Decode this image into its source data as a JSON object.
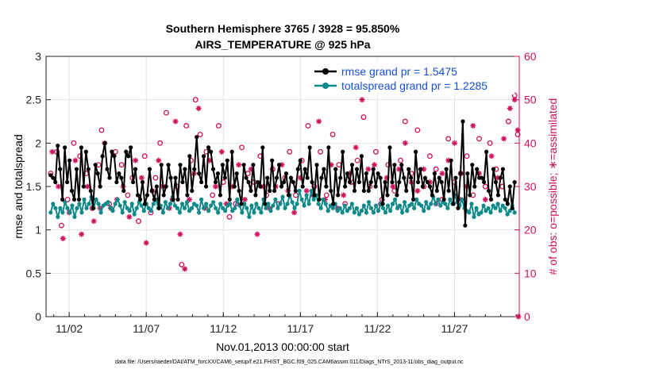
{
  "chart_data": {
    "type": "line",
    "title_line1": "Southern Hemisphere 3765 / 3928 = 95.850%",
    "title_line2": "AIRS_TEMPERATURE @ 925 hPa",
    "xlabel": "Nov.01,2013 00:00:00 start",
    "ylabel_left": "rmse and totalspread",
    "ylabel_right": "# of obs: o=possible; ∗=assimilated",
    "footnote": "data file: /Users/raeder/DAI/ATM_forcXX/CAM6_setup/f.e21.FHIST_BGC.f09_025.CAM6assim.011/Diags_NTrS_2013-11/obs_diag_output.nc",
    "x_range": [
      0.5,
      31.2
    ],
    "y_left_range": [
      0,
      3
    ],
    "y_right_range": [
      0,
      60
    ],
    "x_ticks": [
      {
        "day": 2,
        "label": "11/02"
      },
      {
        "day": 7,
        "label": "11/07"
      },
      {
        "day": 12,
        "label": "11/12"
      },
      {
        "day": 17,
        "label": "11/17"
      },
      {
        "day": 22,
        "label": "11/22"
      },
      {
        "day": 27,
        "label": "11/27"
      }
    ],
    "y_left_ticks": [
      {
        "v": 0,
        "label": "0"
      },
      {
        "v": 0.5,
        "label": "0.5"
      },
      {
        "v": 1,
        "label": "1"
      },
      {
        "v": 1.5,
        "label": "1.5"
      },
      {
        "v": 2,
        "label": "2"
      },
      {
        "v": 2.5,
        "label": "2.5"
      },
      {
        "v": 3,
        "label": "3"
      }
    ],
    "y_right_ticks": [
      {
        "v": 0,
        "label": "0"
      },
      {
        "v": 10,
        "label": "10"
      },
      {
        "v": 20,
        "label": "20"
      },
      {
        "v": 30,
        "label": "30"
      },
      {
        "v": 40,
        "label": "40"
      },
      {
        "v": 50,
        "label": "50"
      },
      {
        "v": 60,
        "label": "60"
      }
    ],
    "grid": true,
    "legend_position": "top-right",
    "colors": {
      "rmse": "#000000",
      "spread": "#0f8a8a",
      "obs": "#d0105a",
      "legend_text": "#1650d6"
    },
    "series": [
      {
        "name": "rmse grand pr = 1.5475",
        "axis": "left",
        "values": [
          1.63,
          1.6,
          1.55,
          1.97,
          1.7,
          1.35,
          1.95,
          1.55,
          1.8,
          1.45,
          1.35,
          1.7,
          1.35,
          1.95,
          1.5,
          1.9,
          1.7,
          1.45,
          1.25,
          1.75,
          1.65,
          1.5,
          1.85,
          2.0,
          1.7,
          1.6,
          1.9,
          1.85,
          1.55,
          1.65,
          1.6,
          1.45,
          1.9,
          1.85,
          1.95,
          1.55,
          1.7,
          1.4,
          1.35,
          1.55,
          1.3,
          1.4,
          1.7,
          1.45,
          1.35,
          1.5,
          1.25,
          1.75,
          1.4,
          1.5,
          1.75,
          1.6,
          1.35,
          1.6,
          1.35,
          1.75,
          1.55,
          1.7,
          1.4,
          1.85,
          1.45,
          1.7,
          2.07,
          1.65,
          1.55,
          1.85,
          1.5,
          1.95,
          1.9,
          1.7,
          1.55,
          1.65,
          1.4,
          1.75,
          1.6,
          1.8,
          1.35,
          1.9,
          1.5,
          1.65,
          1.45,
          1.3,
          1.75,
          1.6,
          1.55,
          1.45,
          1.75,
          1.4,
          1.55,
          1.5,
          1.95,
          1.3,
          1.6,
          1.45,
          1.8,
          1.45,
          1.6,
          1.75,
          1.5,
          1.55,
          1.65,
          1.4,
          1.6,
          1.55,
          1.45,
          1.7,
          1.8,
          1.5,
          1.7,
          1.6,
          1.95,
          1.55,
          1.4,
          1.75,
          1.35,
          1.6,
          1.7,
          1.5,
          1.95,
          1.45,
          1.3,
          1.7,
          1.4,
          1.6,
          1.9,
          1.5,
          1.65,
          1.55,
          1.75,
          1.45,
          1.7,
          1.55,
          1.85,
          1.45,
          1.65,
          1.45,
          1.55,
          1.7,
          1.5,
          1.65,
          1.6,
          1.3,
          1.55,
          1.4,
          1.95,
          1.55,
          1.75,
          1.4,
          1.55,
          1.75,
          1.6,
          1.45,
          1.7,
          1.6,
          1.35,
          1.9,
          1.55,
          1.7,
          1.5,
          1.6,
          1.55,
          1.5,
          1.4,
          1.65,
          1.45,
          1.6,
          1.55,
          1.35,
          1.7,
          1.45,
          1.8,
          1.3,
          1.6,
          1.25,
          1.65,
          2.25,
          1.05,
          1.65,
          1.4,
          1.75,
          1.5,
          1.7,
          1.6,
          1.6,
          1.55,
          1.9,
          1.45,
          1.35,
          1.7,
          1.55,
          1.4,
          1.6,
          1.7,
          1.35,
          1.3,
          1.5,
          1.25,
          1.55
        ]
      },
      {
        "name": "totalspread grand pr = 1.2285",
        "axis": "left",
        "values": [
          1.2,
          1.3,
          1.25,
          1.15,
          1.25,
          1.2,
          1.32,
          1.25,
          1.2,
          1.28,
          1.15,
          1.25,
          1.3,
          1.2,
          1.35,
          1.25,
          1.3,
          1.38,
          1.25,
          1.35,
          1.3,
          1.2,
          1.28,
          1.3,
          1.32,
          1.25,
          1.22,
          1.3,
          1.35,
          1.28,
          1.2,
          1.32,
          1.25,
          1.22,
          1.3,
          1.18,
          1.25,
          1.32,
          1.28,
          1.22,
          1.3,
          1.25,
          1.22,
          1.3,
          1.35,
          1.25,
          1.28,
          1.2,
          1.32,
          1.25,
          1.3,
          1.38,
          1.28,
          1.25,
          1.2,
          1.3,
          1.25,
          1.32,
          1.22,
          1.25,
          1.3,
          1.28,
          1.2,
          1.35,
          1.25,
          1.3,
          1.22,
          1.28,
          1.32,
          1.25,
          1.2,
          1.3,
          1.25,
          1.22,
          1.28,
          1.3,
          1.22,
          1.25,
          1.35,
          1.28,
          1.2,
          1.3,
          1.25,
          1.15,
          1.28,
          1.2,
          1.3,
          1.25,
          1.2,
          1.35,
          1.25,
          1.3,
          1.22,
          1.28,
          1.35,
          1.25,
          1.3,
          1.38,
          1.25,
          1.3,
          1.4,
          1.32,
          1.25,
          1.3,
          1.45,
          1.35,
          1.28,
          1.4,
          1.3,
          1.45,
          1.35,
          1.4,
          1.3,
          1.25,
          1.35,
          1.3,
          1.22,
          1.28,
          1.25,
          1.3,
          1.22,
          1.25,
          1.2,
          1.28,
          1.22,
          1.25,
          1.3,
          1.2,
          1.25,
          1.18,
          1.22,
          1.28,
          1.2,
          1.32,
          1.25,
          1.2,
          1.28,
          1.22,
          1.3,
          1.25,
          1.2,
          1.28,
          1.22,
          1.3,
          1.35,
          1.25,
          1.28,
          1.2,
          1.32,
          1.22,
          1.28,
          1.3,
          1.25,
          1.35,
          1.3,
          1.28,
          1.22,
          1.32,
          1.25,
          1.3,
          1.38,
          1.3,
          1.35,
          1.28,
          1.32,
          1.3,
          1.25,
          1.35,
          1.3,
          1.4,
          1.32,
          1.28,
          1.35,
          1.25,
          1.22,
          1.2,
          1.3,
          1.15,
          1.25,
          1.18,
          1.2,
          1.28,
          1.22,
          1.25,
          1.2,
          1.28,
          1.25,
          1.3,
          1.22,
          1.28,
          1.25,
          1.18,
          1.22,
          1.28,
          1.2
        ]
      },
      {
        "name": "obs possible",
        "axis": "right",
        "marker": "o",
        "points": [
          [
            0.8,
            33
          ],
          [
            1.2,
            38
          ],
          [
            1.5,
            21
          ],
          [
            1.9,
            27
          ],
          [
            2.3,
            40
          ],
          [
            2.7,
            37
          ],
          [
            3.1,
            33
          ],
          [
            3.5,
            25
          ],
          [
            3.9,
            35
          ],
          [
            4.1,
            43
          ],
          [
            4.6,
            26
          ],
          [
            5.0,
            38
          ],
          [
            5.4,
            35
          ],
          [
            5.8,
            28
          ],
          [
            6.1,
            32
          ],
          [
            6.5,
            22
          ],
          [
            6.9,
            37
          ],
          [
            7.3,
            24
          ],
          [
            7.6,
            32
          ],
          [
            7.9,
            40
          ],
          [
            8.3,
            47
          ],
          [
            8.7,
            27
          ],
          [
            9.0,
            30
          ],
          [
            9.3,
            12
          ],
          [
            9.6,
            44
          ],
          [
            9.9,
            36
          ],
          [
            10.2,
            50
          ],
          [
            10.5,
            42
          ],
          [
            10.9,
            38
          ],
          [
            11.3,
            28
          ],
          [
            11.7,
            44
          ],
          [
            12.0,
            31
          ],
          [
            12.4,
            23
          ],
          [
            12.8,
            26
          ],
          [
            13.2,
            39
          ],
          [
            13.6,
            33
          ],
          [
            14.0,
            31
          ],
          [
            14.4,
            37
          ],
          [
            14.8,
            28
          ],
          [
            15.2,
            34
          ],
          [
            15.6,
            26
          ],
          [
            16.0,
            32
          ],
          [
            16.3,
            38
          ],
          [
            16.7,
            28
          ],
          [
            17.1,
            36
          ],
          [
            17.5,
            44
          ],
          [
            17.9,
            30
          ],
          [
            18.3,
            38
          ],
          [
            18.7,
            28
          ],
          [
            19.1,
            42
          ],
          [
            19.5,
            35
          ],
          [
            19.9,
            26
          ],
          [
            20.3,
            31
          ],
          [
            20.7,
            36
          ],
          [
            21.1,
            46
          ],
          [
            21.5,
            30
          ],
          [
            21.9,
            38
          ],
          [
            22.3,
            27
          ],
          [
            22.7,
            35
          ],
          [
            23.1,
            29
          ],
          [
            23.5,
            36
          ],
          [
            23.8,
            45
          ],
          [
            24.2,
            33
          ],
          [
            24.6,
            43
          ],
          [
            25.0,
            30
          ],
          [
            25.4,
            37
          ],
          [
            25.8,
            34
          ],
          [
            26.2,
            27
          ],
          [
            26.6,
            41
          ],
          [
            27.0,
            31
          ],
          [
            27.4,
            33
          ],
          [
            27.8,
            37
          ],
          [
            28.2,
            28
          ],
          [
            28.6,
            41
          ],
          [
            29.0,
            30
          ],
          [
            29.3,
            40
          ],
          [
            29.7,
            34
          ],
          [
            30.1,
            30
          ],
          [
            30.5,
            45
          ],
          [
            30.9,
            51
          ],
          [
            31.1,
            42
          ]
        ]
      },
      {
        "name": "obs assimilated",
        "axis": "right",
        "marker": "*",
        "points": [
          [
            0.9,
            38
          ],
          [
            1.3,
            30
          ],
          [
            1.6,
            18
          ],
          [
            2.0,
            24
          ],
          [
            2.4,
            36
          ],
          [
            2.8,
            19
          ],
          [
            3.2,
            30
          ],
          [
            3.6,
            22
          ],
          [
            4.0,
            25
          ],
          [
            4.3,
            40
          ],
          [
            4.7,
            25
          ],
          [
            5.1,
            27
          ],
          [
            5.5,
            30
          ],
          [
            5.9,
            23
          ],
          [
            6.3,
            36
          ],
          [
            6.7,
            32
          ],
          [
            7.0,
            17
          ],
          [
            7.4,
            29
          ],
          [
            7.8,
            36
          ],
          [
            8.1,
            30
          ],
          [
            8.5,
            25
          ],
          [
            8.9,
            45
          ],
          [
            9.2,
            19
          ],
          [
            9.5,
            11
          ],
          [
            9.8,
            27
          ],
          [
            10.1,
            33
          ],
          [
            10.4,
            48
          ],
          [
            10.8,
            25
          ],
          [
            11.1,
            36
          ],
          [
            11.5,
            30
          ],
          [
            11.9,
            38
          ],
          [
            12.2,
            26
          ],
          [
            12.6,
            30
          ],
          [
            13.0,
            35
          ],
          [
            13.4,
            27
          ],
          [
            13.8,
            34
          ],
          [
            14.2,
            19
          ],
          [
            14.6,
            30
          ],
          [
            15.0,
            25
          ],
          [
            15.4,
            30
          ],
          [
            15.8,
            35
          ],
          [
            16.2,
            29
          ],
          [
            16.6,
            24
          ],
          [
            17.0,
            32
          ],
          [
            17.4,
            29
          ],
          [
            17.8,
            28
          ],
          [
            18.2,
            45
          ],
          [
            18.6,
            27
          ],
          [
            19.0,
            35
          ],
          [
            19.4,
            25
          ],
          [
            19.8,
            28
          ],
          [
            20.2,
            33
          ],
          [
            20.6,
            39
          ],
          [
            21.0,
            50
          ],
          [
            21.4,
            34
          ],
          [
            21.8,
            35
          ],
          [
            22.2,
            26
          ],
          [
            22.6,
            32
          ],
          [
            23.0,
            30
          ],
          [
            23.4,
            34
          ],
          [
            23.8,
            40
          ],
          [
            24.2,
            31
          ],
          [
            24.6,
            29
          ],
          [
            25.0,
            34
          ],
          [
            25.4,
            31
          ],
          [
            25.8,
            26
          ],
          [
            26.2,
            33
          ],
          [
            26.6,
            36
          ],
          [
            27.0,
            40
          ],
          [
            27.4,
            27
          ],
          [
            27.8,
            30
          ],
          [
            28.2,
            44
          ],
          [
            28.6,
            33
          ],
          [
            29.0,
            27
          ],
          [
            29.4,
            37
          ],
          [
            29.8,
            32
          ],
          [
            30.2,
            41
          ],
          [
            30.6,
            48
          ],
          [
            30.9,
            50
          ],
          [
            31.1,
            43
          ],
          [
            31.15,
            0
          ]
        ]
      }
    ]
  }
}
